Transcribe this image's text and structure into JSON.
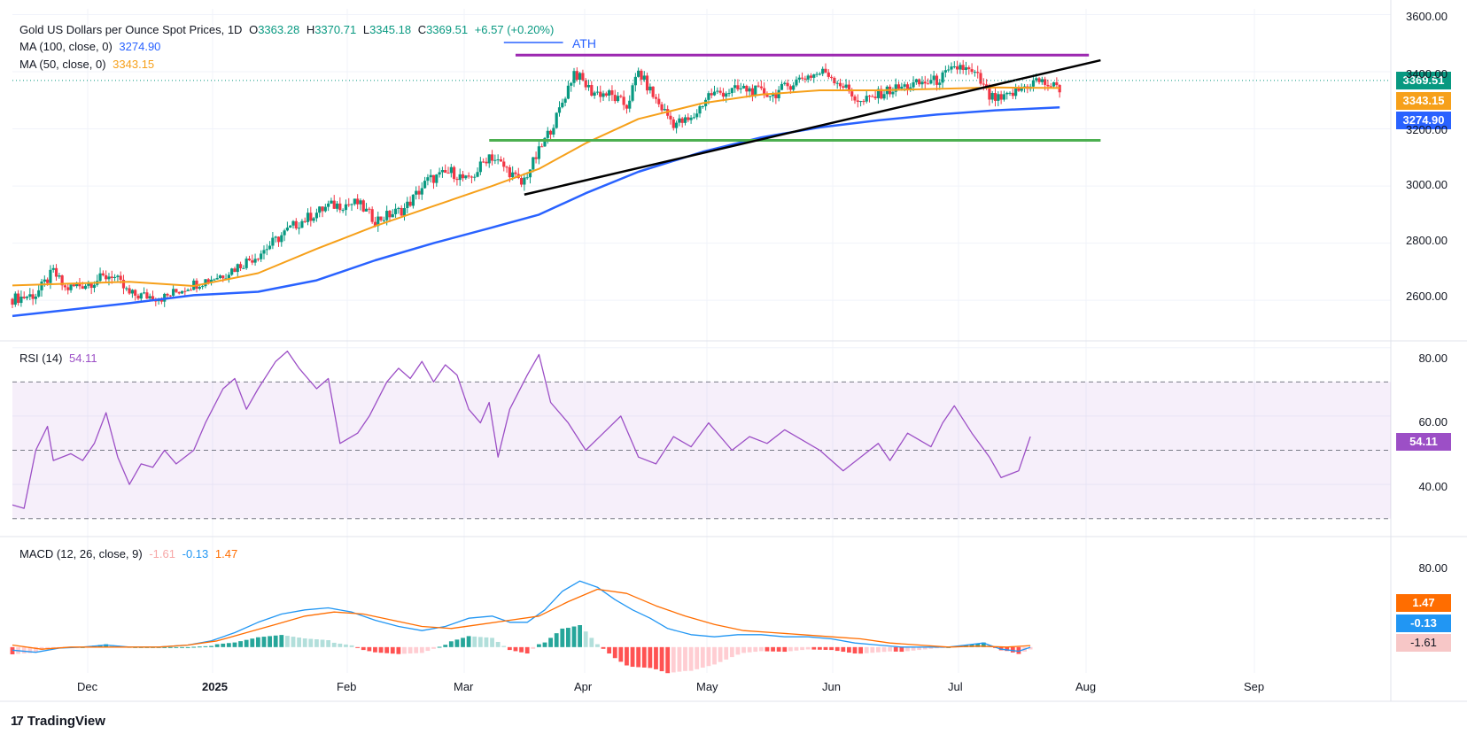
{
  "header": {
    "title": "Gold US Dollars per Ounce Spot Prices, 1D",
    "o_label": "O",
    "o_value": "3363.28",
    "h_label": "H",
    "h_value": "3370.71",
    "l_label": "L",
    "l_value": "3345.18",
    "c_label": "C",
    "c_value": "3369.51",
    "change": "+6.57 (+0.20%)",
    "ma100_label": "MA (100, close, 0)",
    "ma100_value": "3274.90",
    "ma50_label": "MA (50, close, 0)",
    "ma50_value": "3343.15"
  },
  "annotations": {
    "ath": "ATH"
  },
  "price_tags": {
    "last": "3369.51",
    "ma50": "3343.15",
    "ma100": "3274.90"
  },
  "rsi": {
    "label": "RSI (14)",
    "value": "54.11"
  },
  "macd": {
    "label": "MACD (12, 26, close, 9)",
    "hist_value": "-1.61",
    "macd_value": "-0.13",
    "signal_value": "1.47"
  },
  "axes": {
    "price_ticks": [
      "3600.00",
      "3400.00",
      "3200.00",
      "3000.00",
      "2800.00",
      "2600.00"
    ],
    "rsi_ticks": [
      "80.00",
      "60.00",
      "40.00"
    ],
    "macd_ticks": [
      "80.00"
    ],
    "x_ticks": [
      "Dec",
      "2025",
      "Feb",
      "Mar",
      "Apr",
      "May",
      "Jun",
      "Jul",
      "Aug",
      "Sep"
    ]
  },
  "colors": {
    "up": "#089981",
    "down": "#f23645",
    "ma100": "#2962ff",
    "ma50": "#f6a01a",
    "rsi": "#9c4fc6",
    "macd": "#2196f3",
    "signal": "#ff6d00",
    "resistance": "#9c27b0",
    "support": "#4caf50",
    "trendline": "#000000"
  },
  "branding": {
    "name": "TradingView"
  },
  "chart_data": {
    "type": "candlestick",
    "title": "Gold US Dollars per Ounce Spot Prices, 1D",
    "ylim": [
      2520,
      3620
    ],
    "price_path": [
      [
        0,
        2605
      ],
      [
        8,
        2620
      ],
      [
        14,
        2700
      ],
      [
        18,
        2640
      ],
      [
        26,
        2660
      ],
      [
        34,
        2690
      ],
      [
        40,
        2620
      ],
      [
        52,
        2610
      ],
      [
        60,
        2650
      ],
      [
        72,
        2690
      ],
      [
        84,
        2760
      ],
      [
        96,
        2860
      ],
      [
        108,
        2930
      ],
      [
        118,
        2940
      ],
      [
        124,
        2880
      ],
      [
        134,
        2920
      ],
      [
        142,
        3020
      ],
      [
        150,
        3050
      ],
      [
        156,
        3015
      ],
      [
        163,
        3110
      ],
      [
        170,
        3050
      ],
      [
        174,
        3005
      ],
      [
        180,
        3120
      ],
      [
        186,
        3240
      ],
      [
        192,
        3400
      ],
      [
        198,
        3330
      ],
      [
        204,
        3320
      ],
      [
        210,
        3280
      ],
      [
        214,
        3400
      ],
      [
        220,
        3300
      ],
      [
        226,
        3220
      ],
      [
        232,
        3230
      ],
      [
        238,
        3320
      ],
      [
        250,
        3340
      ],
      [
        260,
        3320
      ],
      [
        270,
        3380
      ],
      [
        278,
        3400
      ],
      [
        284,
        3350
      ],
      [
        290,
        3290
      ],
      [
        298,
        3330
      ],
      [
        306,
        3350
      ],
      [
        316,
        3370
      ],
      [
        324,
        3420
      ],
      [
        330,
        3380
      ],
      [
        334,
        3310
      ],
      [
        338,
        3300
      ],
      [
        350,
        3370
      ],
      [
        358,
        3340
      ]
    ],
    "ma50_path": [
      [
        0,
        2652
      ],
      [
        40,
        2665
      ],
      [
        62,
        2650
      ],
      [
        84,
        2695
      ],
      [
        104,
        2780
      ],
      [
        124,
        2860
      ],
      [
        144,
        2930
      ],
      [
        164,
        3000
      ],
      [
        180,
        3060
      ],
      [
        196,
        3150
      ],
      [
        214,
        3235
      ],
      [
        236,
        3290
      ],
      [
        256,
        3320
      ],
      [
        276,
        3335
      ],
      [
        296,
        3335
      ],
      [
        316,
        3340
      ],
      [
        336,
        3345
      ],
      [
        358,
        3343
      ]
    ],
    "ma100_path": [
      [
        0,
        2545
      ],
      [
        40,
        2590
      ],
      [
        62,
        2618
      ],
      [
        84,
        2630
      ],
      [
        104,
        2670
      ],
      [
        124,
        2740
      ],
      [
        144,
        2800
      ],
      [
        164,
        2855
      ],
      [
        180,
        2900
      ],
      [
        196,
        2975
      ],
      [
        214,
        3050
      ],
      [
        236,
        3120
      ],
      [
        256,
        3170
      ],
      [
        276,
        3205
      ],
      [
        296,
        3230
      ],
      [
        316,
        3250
      ],
      [
        336,
        3265
      ],
      [
        358,
        3275
      ]
    ],
    "resistance_level": 3458,
    "support_level": 3160,
    "trendline": {
      "from": [
        175,
        2970
      ],
      "to": [
        372,
        3440
      ]
    },
    "ath_marker": {
      "index": 188,
      "price": 3500
    },
    "rsi": {
      "ylim": [
        25,
        82
      ],
      "overbought": 70,
      "midline": 50,
      "oversold": 30,
      "values": [
        [
          0,
          34
        ],
        [
          4,
          33
        ],
        [
          8,
          50
        ],
        [
          12,
          57
        ],
        [
          14,
          47
        ],
        [
          20,
          49
        ],
        [
          24,
          47
        ],
        [
          28,
          52
        ],
        [
          32,
          61
        ],
        [
          36,
          48
        ],
        [
          40,
          40
        ],
        [
          44,
          46
        ],
        [
          48,
          45
        ],
        [
          52,
          50
        ],
        [
          56,
          46
        ],
        [
          62,
          50
        ],
        [
          66,
          58
        ],
        [
          72,
          68
        ],
        [
          76,
          71
        ],
        [
          80,
          62
        ],
        [
          84,
          68
        ],
        [
          90,
          76
        ],
        [
          94,
          79
        ],
        [
          98,
          74
        ],
        [
          104,
          68
        ],
        [
          108,
          71
        ],
        [
          112,
          52
        ],
        [
          118,
          55
        ],
        [
          122,
          60
        ],
        [
          128,
          70
        ],
        [
          132,
          74
        ],
        [
          136,
          71
        ],
        [
          140,
          76
        ],
        [
          144,
          70
        ],
        [
          148,
          75
        ],
        [
          152,
          72
        ],
        [
          156,
          62
        ],
        [
          160,
          58
        ],
        [
          163,
          64
        ],
        [
          166,
          48
        ],
        [
          170,
          62
        ],
        [
          176,
          72
        ],
        [
          180,
          78
        ],
        [
          184,
          64
        ],
        [
          190,
          58
        ],
        [
          196,
          50
        ],
        [
          202,
          55
        ],
        [
          208,
          60
        ],
        [
          214,
          48
        ],
        [
          220,
          46
        ],
        [
          226,
          54
        ],
        [
          232,
          51
        ],
        [
          238,
          58
        ],
        [
          246,
          50
        ],
        [
          252,
          54
        ],
        [
          258,
          52
        ],
        [
          264,
          56
        ],
        [
          270,
          53
        ],
        [
          276,
          50
        ],
        [
          284,
          44
        ],
        [
          290,
          48
        ],
        [
          296,
          52
        ],
        [
          300,
          47
        ],
        [
          306,
          55
        ],
        [
          314,
          51
        ],
        [
          318,
          58
        ],
        [
          322,
          63
        ],
        [
          328,
          55
        ],
        [
          334,
          48
        ],
        [
          338,
          42
        ],
        [
          344,
          44
        ],
        [
          348,
          54
        ]
      ]
    },
    "macd": {
      "ylim": [
        -25,
        95
      ],
      "macd_values": [
        [
          0,
          -3
        ],
        [
          8,
          -5
        ],
        [
          16,
          -1
        ],
        [
          24,
          0
        ],
        [
          32,
          2
        ],
        [
          40,
          0
        ],
        [
          50,
          0
        ],
        [
          60,
          2
        ],
        [
          68,
          6
        ],
        [
          76,
          14
        ],
        [
          84,
          24
        ],
        [
          92,
          32
        ],
        [
          100,
          36
        ],
        [
          108,
          38
        ],
        [
          116,
          34
        ],
        [
          124,
          26
        ],
        [
          132,
          20
        ],
        [
          140,
          16
        ],
        [
          148,
          20
        ],
        [
          156,
          28
        ],
        [
          164,
          30
        ],
        [
          170,
          24
        ],
        [
          176,
          24
        ],
        [
          182,
          36
        ],
        [
          188,
          54
        ],
        [
          194,
          64
        ],
        [
          200,
          58
        ],
        [
          206,
          46
        ],
        [
          212,
          36
        ],
        [
          218,
          28
        ],
        [
          224,
          18
        ],
        [
          232,
          12
        ],
        [
          240,
          10
        ],
        [
          248,
          12
        ],
        [
          256,
          12
        ],
        [
          264,
          10
        ],
        [
          272,
          10
        ],
        [
          280,
          8
        ],
        [
          288,
          4
        ],
        [
          296,
          2
        ],
        [
          304,
          0
        ],
        [
          312,
          0
        ],
        [
          320,
          0
        ],
        [
          326,
          2
        ],
        [
          332,
          4
        ],
        [
          338,
          -2
        ],
        [
          344,
          -4
        ],
        [
          348,
          -0.13
        ]
      ],
      "signal_values": [
        [
          0,
          2
        ],
        [
          10,
          -2
        ],
        [
          20,
          0
        ],
        [
          30,
          0
        ],
        [
          40,
          0
        ],
        [
          50,
          0
        ],
        [
          60,
          2
        ],
        [
          70,
          6
        ],
        [
          80,
          14
        ],
        [
          90,
          22
        ],
        [
          100,
          30
        ],
        [
          110,
          34
        ],
        [
          120,
          32
        ],
        [
          130,
          26
        ],
        [
          140,
          20
        ],
        [
          150,
          18
        ],
        [
          160,
          22
        ],
        [
          170,
          26
        ],
        [
          180,
          30
        ],
        [
          190,
          44
        ],
        [
          200,
          56
        ],
        [
          210,
          52
        ],
        [
          220,
          40
        ],
        [
          230,
          30
        ],
        [
          240,
          22
        ],
        [
          250,
          16
        ],
        [
          260,
          14
        ],
        [
          270,
          12
        ],
        [
          280,
          10
        ],
        [
          290,
          8
        ],
        [
          300,
          4
        ],
        [
          310,
          2
        ],
        [
          320,
          0
        ],
        [
          330,
          1
        ],
        [
          340,
          0
        ],
        [
          348,
          1.47
        ]
      ]
    }
  }
}
